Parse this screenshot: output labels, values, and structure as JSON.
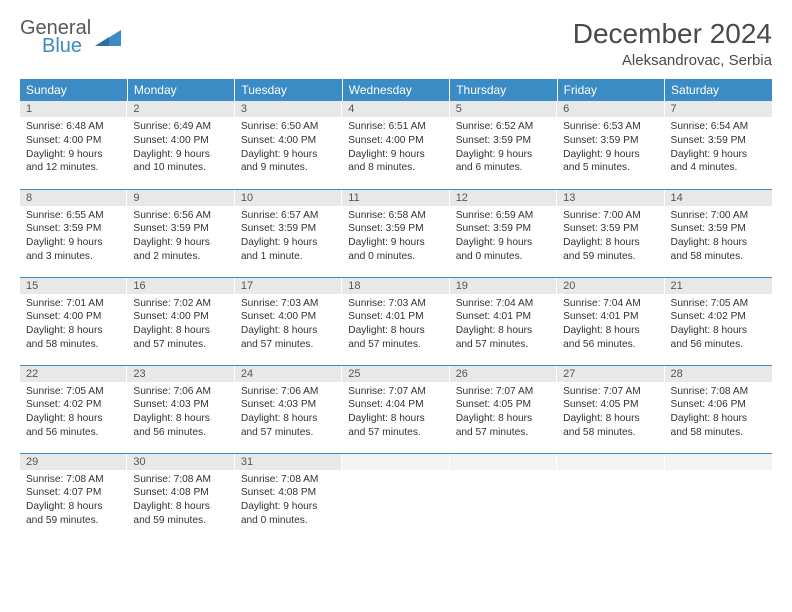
{
  "logo": {
    "word1": "General",
    "word2": "Blue"
  },
  "title": "December 2024",
  "location": "Aleksandrovac, Serbia",
  "colors": {
    "header_bg": "#3b8bc5",
    "header_fg": "#ffffff",
    "daynum_bg": "#e8e8e8",
    "row_divider": "#3b8bc5",
    "body_text": "#333333",
    "logo_gray": "#58595b",
    "logo_blue": "#3b8bc5"
  },
  "typography": {
    "title_fontsize": 28,
    "location_fontsize": 15,
    "header_fontsize": 12,
    "daynum_fontsize": 11,
    "body_fontsize": 10.2
  },
  "weekdays": [
    "Sunday",
    "Monday",
    "Tuesday",
    "Wednesday",
    "Thursday",
    "Friday",
    "Saturday"
  ],
  "days": [
    {
      "n": "1",
      "sr": "Sunrise: 6:48 AM",
      "ss": "Sunset: 4:00 PM",
      "d1": "Daylight: 9 hours",
      "d2": "and 12 minutes."
    },
    {
      "n": "2",
      "sr": "Sunrise: 6:49 AM",
      "ss": "Sunset: 4:00 PM",
      "d1": "Daylight: 9 hours",
      "d2": "and 10 minutes."
    },
    {
      "n": "3",
      "sr": "Sunrise: 6:50 AM",
      "ss": "Sunset: 4:00 PM",
      "d1": "Daylight: 9 hours",
      "d2": "and 9 minutes."
    },
    {
      "n": "4",
      "sr": "Sunrise: 6:51 AM",
      "ss": "Sunset: 4:00 PM",
      "d1": "Daylight: 9 hours",
      "d2": "and 8 minutes."
    },
    {
      "n": "5",
      "sr": "Sunrise: 6:52 AM",
      "ss": "Sunset: 3:59 PM",
      "d1": "Daylight: 9 hours",
      "d2": "and 6 minutes."
    },
    {
      "n": "6",
      "sr": "Sunrise: 6:53 AM",
      "ss": "Sunset: 3:59 PM",
      "d1": "Daylight: 9 hours",
      "d2": "and 5 minutes."
    },
    {
      "n": "7",
      "sr": "Sunrise: 6:54 AM",
      "ss": "Sunset: 3:59 PM",
      "d1": "Daylight: 9 hours",
      "d2": "and 4 minutes."
    },
    {
      "n": "8",
      "sr": "Sunrise: 6:55 AM",
      "ss": "Sunset: 3:59 PM",
      "d1": "Daylight: 9 hours",
      "d2": "and 3 minutes."
    },
    {
      "n": "9",
      "sr": "Sunrise: 6:56 AM",
      "ss": "Sunset: 3:59 PM",
      "d1": "Daylight: 9 hours",
      "d2": "and 2 minutes."
    },
    {
      "n": "10",
      "sr": "Sunrise: 6:57 AM",
      "ss": "Sunset: 3:59 PM",
      "d1": "Daylight: 9 hours",
      "d2": "and 1 minute."
    },
    {
      "n": "11",
      "sr": "Sunrise: 6:58 AM",
      "ss": "Sunset: 3:59 PM",
      "d1": "Daylight: 9 hours",
      "d2": "and 0 minutes."
    },
    {
      "n": "12",
      "sr": "Sunrise: 6:59 AM",
      "ss": "Sunset: 3:59 PM",
      "d1": "Daylight: 9 hours",
      "d2": "and 0 minutes."
    },
    {
      "n": "13",
      "sr": "Sunrise: 7:00 AM",
      "ss": "Sunset: 3:59 PM",
      "d1": "Daylight: 8 hours",
      "d2": "and 59 minutes."
    },
    {
      "n": "14",
      "sr": "Sunrise: 7:00 AM",
      "ss": "Sunset: 3:59 PM",
      "d1": "Daylight: 8 hours",
      "d2": "and 58 minutes."
    },
    {
      "n": "15",
      "sr": "Sunrise: 7:01 AM",
      "ss": "Sunset: 4:00 PM",
      "d1": "Daylight: 8 hours",
      "d2": "and 58 minutes."
    },
    {
      "n": "16",
      "sr": "Sunrise: 7:02 AM",
      "ss": "Sunset: 4:00 PM",
      "d1": "Daylight: 8 hours",
      "d2": "and 57 minutes."
    },
    {
      "n": "17",
      "sr": "Sunrise: 7:03 AM",
      "ss": "Sunset: 4:00 PM",
      "d1": "Daylight: 8 hours",
      "d2": "and 57 minutes."
    },
    {
      "n": "18",
      "sr": "Sunrise: 7:03 AM",
      "ss": "Sunset: 4:01 PM",
      "d1": "Daylight: 8 hours",
      "d2": "and 57 minutes."
    },
    {
      "n": "19",
      "sr": "Sunrise: 7:04 AM",
      "ss": "Sunset: 4:01 PM",
      "d1": "Daylight: 8 hours",
      "d2": "and 57 minutes."
    },
    {
      "n": "20",
      "sr": "Sunrise: 7:04 AM",
      "ss": "Sunset: 4:01 PM",
      "d1": "Daylight: 8 hours",
      "d2": "and 56 minutes."
    },
    {
      "n": "21",
      "sr": "Sunrise: 7:05 AM",
      "ss": "Sunset: 4:02 PM",
      "d1": "Daylight: 8 hours",
      "d2": "and 56 minutes."
    },
    {
      "n": "22",
      "sr": "Sunrise: 7:05 AM",
      "ss": "Sunset: 4:02 PM",
      "d1": "Daylight: 8 hours",
      "d2": "and 56 minutes."
    },
    {
      "n": "23",
      "sr": "Sunrise: 7:06 AM",
      "ss": "Sunset: 4:03 PM",
      "d1": "Daylight: 8 hours",
      "d2": "and 56 minutes."
    },
    {
      "n": "24",
      "sr": "Sunrise: 7:06 AM",
      "ss": "Sunset: 4:03 PM",
      "d1": "Daylight: 8 hours",
      "d2": "and 57 minutes."
    },
    {
      "n": "25",
      "sr": "Sunrise: 7:07 AM",
      "ss": "Sunset: 4:04 PM",
      "d1": "Daylight: 8 hours",
      "d2": "and 57 minutes."
    },
    {
      "n": "26",
      "sr": "Sunrise: 7:07 AM",
      "ss": "Sunset: 4:05 PM",
      "d1": "Daylight: 8 hours",
      "d2": "and 57 minutes."
    },
    {
      "n": "27",
      "sr": "Sunrise: 7:07 AM",
      "ss": "Sunset: 4:05 PM",
      "d1": "Daylight: 8 hours",
      "d2": "and 58 minutes."
    },
    {
      "n": "28",
      "sr": "Sunrise: 7:08 AM",
      "ss": "Sunset: 4:06 PM",
      "d1": "Daylight: 8 hours",
      "d2": "and 58 minutes."
    },
    {
      "n": "29",
      "sr": "Sunrise: 7:08 AM",
      "ss": "Sunset: 4:07 PM",
      "d1": "Daylight: 8 hours",
      "d2": "and 59 minutes."
    },
    {
      "n": "30",
      "sr": "Sunrise: 7:08 AM",
      "ss": "Sunset: 4:08 PM",
      "d1": "Daylight: 8 hours",
      "d2": "and 59 minutes."
    },
    {
      "n": "31",
      "sr": "Sunrise: 7:08 AM",
      "ss": "Sunset: 4:08 PM",
      "d1": "Daylight: 9 hours",
      "d2": "and 0 minutes."
    }
  ]
}
